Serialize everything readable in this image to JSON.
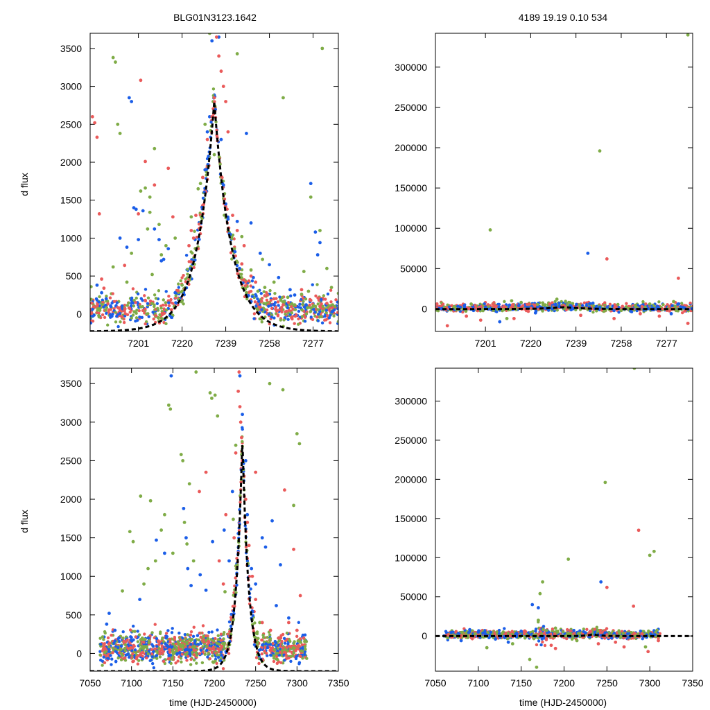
{
  "figure": {
    "title_left": "BLG01N3123.1642",
    "title_right": "4189  19.19  0.10  534",
    "ylabel": "d flux",
    "xlabel": "time (HJD-2450000)"
  },
  "colors": {
    "green": "#7fac47",
    "blue": "#1b5ee8",
    "red": "#ea5a5a",
    "model": "#000000"
  },
  "model": {
    "peak_time": 7234,
    "peak_flux": 2800,
    "baseline": -230,
    "tau": 7.5
  },
  "chart_data": [
    {
      "id": "zoom-flux",
      "type": "scatter",
      "title": "BLG01N3123.1642",
      "xlabel": "",
      "ylabel": "d flux",
      "xlim": [
        7180,
        7288
      ],
      "ylim": [
        -230,
        3700
      ],
      "xticks": [
        7201,
        7220,
        7239,
        7258,
        7277
      ],
      "yticks": [
        0,
        500,
        1000,
        1500,
        2000,
        2500,
        3000,
        3500
      ],
      "series": [
        {
          "name": "green",
          "color": "#7fac47",
          "x": [
            7190,
            7191,
            7192,
            7193,
            7202,
            7204,
            7206,
            7208,
            7210,
            7248,
            7250,
            7253,
            7256,
            7260,
            7263,
            7266,
            7269,
            7272,
            7275,
            7280,
            7283,
            7285,
            7227,
            7228,
            7229,
            7230,
            7190,
            7198,
            7196,
            7205,
            7217,
            7207,
            7211,
            7213,
            7220,
            7232,
            7206,
            7224,
            7255,
            7273,
            7244,
            7281,
            7264,
            7276,
            7234,
            7246
          ],
          "y": [
            3380,
            3320,
            2500,
            2380,
            1620,
            1660,
            1340,
            2180,
            1180,
            280,
            580,
            300,
            350,
            420,
            180,
            220,
            120,
            260,
            300,
            1100,
            600,
            350,
            1650,
            1720,
            1800,
            2500,
            620,
            800,
            420,
            1120,
            1000,
            520,
            780,
            900,
            380,
            3700,
            1540,
            1280,
            720,
            560,
            3430,
            3500,
            2850,
            1540,
            2100,
            1020
          ]
        },
        {
          "name": "blue",
          "color": "#1b5ee8",
          "x": [
            7183,
            7185,
            7187,
            7189,
            7196,
            7197,
            7198,
            7199,
            7200,
            7201,
            7208,
            7210,
            7212,
            7214,
            7217,
            7236,
            7237,
            7238,
            7239,
            7240,
            7241,
            7243,
            7245,
            7248,
            7250,
            7254,
            7258,
            7262,
            7267,
            7276,
            7278,
            7279,
            7280,
            7233,
            7232,
            7231,
            7230,
            7193,
            7203,
            7211,
            7244,
            7251,
            7269,
            7274
          ],
          "y": [
            380,
            280,
            200,
            100,
            880,
            2850,
            2800,
            1400,
            1380,
            980,
            1120,
            980,
            720,
            860,
            280,
            3650,
            2300,
            1700,
            1450,
            1250,
            1050,
            820,
            600,
            2380,
            1200,
            800,
            650,
            480,
            320,
            1720,
            1080,
            780,
            940,
            3600,
            2600,
            2400,
            1900,
            1000,
            1360,
            700,
            1220,
            480,
            250,
            120
          ]
        },
        {
          "name": "red",
          "color": "#ea5a5a",
          "x": [
            7181,
            7182,
            7183,
            7184,
            7185,
            7202,
            7204,
            7214,
            7216,
            7225,
            7227,
            7235,
            7236,
            7237,
            7238,
            7239,
            7240,
            7242,
            7244,
            7247,
            7250,
            7256,
            7260,
            7264,
            7272,
            7276,
            7280,
            7223,
            7224,
            7226,
            7229,
            7231,
            7233,
            7234,
            7246,
            7252,
            7283,
            7204,
            7208,
            7201,
            7195,
            7186
          ],
          "y": [
            2600,
            2520,
            2330,
            1320,
            460,
            3080,
            2010,
            1920,
            1280,
            1000,
            860,
            3650,
            3400,
            3200,
            3000,
            2800,
            2400,
            1300,
            1100,
            900,
            500,
            240,
            200,
            120,
            320,
            180,
            100,
            900,
            1100,
            1300,
            1800,
            2300,
            2600,
            2850,
            660,
            420,
            140,
            180,
            1700,
            1320,
            640,
            340
          ]
        }
      ]
    },
    {
      "id": "zoom-full",
      "type": "scatter",
      "title": "4189  19.19  0.10  534",
      "xlabel": "",
      "ylabel": "",
      "xlim": [
        7180,
        7288
      ],
      "ylim": [
        -28000,
        342000
      ],
      "xticks": [
        7201,
        7220,
        7239,
        7258,
        7277
      ],
      "yticks": [
        0,
        50000,
        100000,
        150000,
        200000,
        250000,
        300000
      ],
      "series": [
        {
          "name": "green",
          "color": "#7fac47",
          "x": [
            7203,
            7212,
            7249,
            7286,
            7188,
            7195,
            7210,
            7216,
            7226,
            7231,
            7236,
            7258,
            7264,
            7270,
            7280
          ],
          "y": [
            98000,
            10000,
            196000,
            340000,
            3000,
            6000,
            -12000,
            8000,
            5000,
            12000,
            8000,
            -2000,
            3000,
            6000,
            9000
          ]
        },
        {
          "name": "blue",
          "color": "#1b5ee8",
          "x": [
            7244,
            7196,
            7201,
            7207,
            7215,
            7222,
            7232,
            7237,
            7249,
            7262,
            7271,
            7279,
            7284
          ],
          "y": [
            69000,
            -2000,
            2000,
            -16000,
            4000,
            -5000,
            3000,
            -1000,
            2000,
            -3000,
            1000,
            -6000,
            2000
          ]
        },
        {
          "name": "red",
          "color": "#ea5a5a",
          "x": [
            7252,
            7282,
            7185,
            7193,
            7199,
            7205,
            7213,
            7219,
            7228,
            7234,
            7241,
            7255,
            7266,
            7274,
            7286
          ],
          "y": [
            62000,
            38000,
            -21000,
            -9000,
            -14000,
            4000,
            -12000,
            -3000,
            6000,
            4000,
            -8000,
            -12000,
            -6000,
            -9000,
            -18000
          ]
        }
      ]
    },
    {
      "id": "season-flux",
      "type": "scatter",
      "title": "",
      "xlabel": "time (HJD-2450000)",
      "ylabel": "d flux",
      "xlim": [
        7050,
        7350
      ],
      "ylim": [
        -230,
        3700
      ],
      "xticks": [
        7050,
        7100,
        7150,
        7200,
        7250,
        7300,
        7350
      ],
      "yticks": [
        0,
        500,
        1000,
        1500,
        2000,
        2500,
        3000,
        3500
      ],
      "series": [
        {
          "name": "green",
          "color": "#7fac47",
          "x": [
            7098,
            7102,
            7111,
            7123,
            7145,
            7147,
            7160,
            7162,
            7164,
            7167,
            7178,
            7195,
            7197,
            7201,
            7204,
            7223,
            7226,
            7267,
            7283,
            7300,
            7303,
            7089,
            7136,
            7129,
            7175,
            7213,
            7255,
            7296,
            7115,
            7140,
            7150,
            7170,
            7120
          ],
          "y": [
            1580,
            1450,
            2040,
            1980,
            3220,
            3170,
            2580,
            2500,
            1700,
            1420,
            3650,
            3380,
            3310,
            3350,
            3080,
            1740,
            2700,
            3500,
            3420,
            2850,
            2720,
            810,
            1600,
            1200,
            1200,
            800,
            400,
            1920,
            900,
            1800,
            1300,
            2200,
            1100
          ]
        },
        {
          "name": "blue",
          "color": "#1b5ee8",
          "x": [
            7070,
            7073,
            7080,
            7085,
            7130,
            7148,
            7163,
            7166,
            7168,
            7172,
            7183,
            7190,
            7198,
            7222,
            7231,
            7234,
            7238,
            7240,
            7245,
            7250,
            7258,
            7262,
            7270,
            7275,
            7280,
            7290,
            7110,
            7140,
            7212,
            7218
          ],
          "y": [
            380,
            520,
            300,
            200,
            1470,
            3600,
            1880,
            1500,
            1100,
            880,
            1020,
            820,
            1450,
            2100,
            3600,
            3100,
            2500,
            1800,
            1100,
            900,
            1500,
            1380,
            1720,
            620,
            1150,
            460,
            700,
            1300,
            1600,
            1200
          ]
        },
        {
          "name": "red",
          "color": "#ea5a5a",
          "x": [
            7182,
            7190,
            7206,
            7214,
            7230,
            7229,
            7231,
            7232,
            7233,
            7234,
            7236,
            7238,
            7240,
            7242,
            7246,
            7250,
            7258,
            7268,
            7278,
            7290,
            7300,
            7308,
            7224,
            7226,
            7250,
            7285,
            7296,
            7304,
            7211
          ],
          "y": [
            2100,
            2350,
            1200,
            1800,
            3650,
            3400,
            3200,
            3000,
            2800,
            2500,
            2300,
            2000,
            1700,
            1400,
            1000,
            700,
            400,
            300,
            200,
            400,
            300,
            200,
            1500,
            2600,
            2350,
            2120,
            1350,
            750,
            900
          ]
        }
      ]
    },
    {
      "id": "season-full",
      "type": "scatter",
      "title": "",
      "xlabel": "time (HJD-2450000)",
      "ylabel": "",
      "xlim": [
        7050,
        7350
      ],
      "ylim": [
        -45000,
        342000
      ],
      "xticks": [
        7050,
        7100,
        7150,
        7200,
        7250,
        7300,
        7350
      ],
      "yticks": [
        0,
        50000,
        100000,
        150000,
        200000,
        250000,
        300000
      ],
      "series": [
        {
          "name": "green",
          "color": "#7fac47",
          "x": [
            7205,
            7248,
            7282,
            7300,
            7305,
            7175,
            7172,
            7170,
            7168,
            7110,
            7140,
            7160,
            7190,
            7215,
            7265,
            7295
          ],
          "y": [
            98000,
            196000,
            342000,
            103000,
            108000,
            69000,
            54000,
            20000,
            -40000,
            -15000,
            -10000,
            -30000,
            10000,
            -6000,
            3000,
            -14000
          ]
        },
        {
          "name": "blue",
          "color": "#1b5ee8",
          "x": [
            7163,
            7243,
            7170,
            7090,
            7120,
            7150,
            7060,
            7080,
            7100,
            7135,
            7225
          ],
          "y": [
            40000,
            69000,
            36000,
            8000,
            -4000,
            6000,
            0,
            -6000,
            5000,
            -8000,
            4000
          ]
        },
        {
          "name": "red",
          "color": "#ea5a5a",
          "x": [
            7250,
            7281,
            7287,
            7260,
            7240,
            7230,
            7270,
            7298,
            7310,
            7190,
            7185
          ],
          "y": [
            62000,
            38000,
            135000,
            -8000,
            -10000,
            5000,
            -14000,
            -20000,
            -6000,
            -16000,
            -12000
          ]
        }
      ]
    }
  ]
}
